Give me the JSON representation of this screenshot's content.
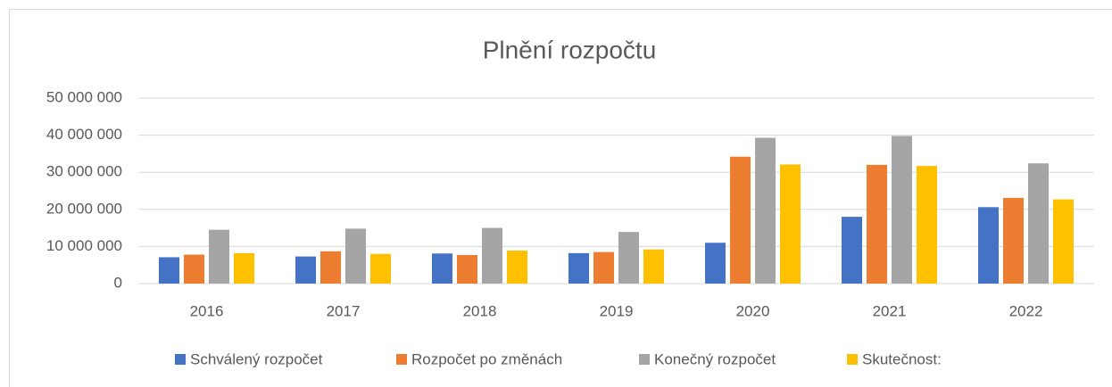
{
  "chart_data": {
    "type": "bar",
    "title": "Plnění rozpočtu",
    "categories": [
      "2016",
      "2017",
      "2018",
      "2019",
      "2020",
      "2021",
      "2022"
    ],
    "series": [
      {
        "name": "Schválený rozpočet",
        "color": "#4472c4",
        "values": [
          7100000,
          7300000,
          8100000,
          8200000,
          11000000,
          18000000,
          20600000
        ]
      },
      {
        "name": "Rozpočet po změnách",
        "color": "#ed7d31",
        "values": [
          7800000,
          8700000,
          7700000,
          8500000,
          34200000,
          32000000,
          23100000
        ]
      },
      {
        "name": "Konečný rozpočet",
        "color": "#a5a5a5",
        "values": [
          14500000,
          14800000,
          15000000,
          13900000,
          39300000,
          39800000,
          32400000
        ]
      },
      {
        "name": "Skutečnost:",
        "color": "#ffc000",
        "values": [
          8200000,
          8000000,
          8900000,
          9200000,
          32100000,
          31700000,
          22700000
        ]
      }
    ],
    "ylim": [
      0,
      50000000
    ],
    "yticks": [
      0,
      {
        "value": 10000000,
        "label": "10 000 000"
      },
      {
        "value": 20000000,
        "label": "20 000 000"
      },
      {
        "value": 30000000,
        "label": "30 000 000"
      },
      {
        "value": 40000000,
        "label": "40 000 000"
      },
      {
        "value": 50000000,
        "label": "50 000 000"
      }
    ],
    "grid": true,
    "legend": "bottom"
  }
}
